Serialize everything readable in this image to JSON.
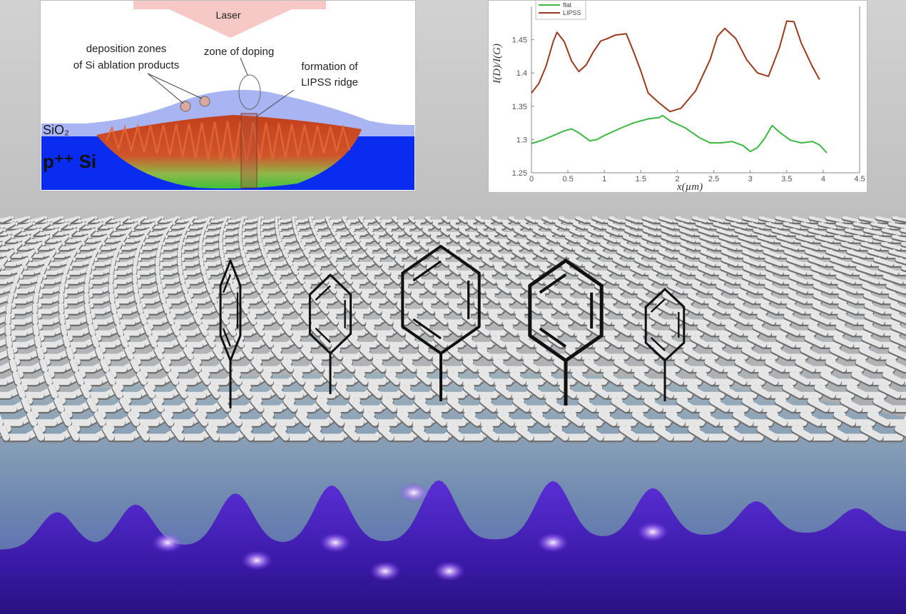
{
  "schematic": {
    "laser_label": "Laser",
    "deposition_label_line1": "deposition zones",
    "deposition_label_line2": "of Si ablation products",
    "doping_label": "zone of doping",
    "lipss_label_line1": "formation of",
    "lipss_label_line2": "LIPSS ridge",
    "oxide_label": "SiO₂",
    "substrate_label": "p⁺⁺ Si",
    "colors": {
      "laser_arrow": "#f6c9c6",
      "oxide_layer": "#a9b4f2",
      "substrate": "#0a2cf0",
      "ridge_core": "#c2401c",
      "ridge_edge": "#3ec23a"
    }
  },
  "chart_data": {
    "type": "line",
    "ylabel": "I(D)/I(G)",
    "xlabel": "x(µm)",
    "xlim": [
      0,
      4.5
    ],
    "ylim": [
      1.25,
      1.5
    ],
    "xticks": [
      "0",
      "0.5",
      "1",
      "1.5",
      "2",
      "2.5",
      "3",
      "3.5",
      "4",
      "4.5"
    ],
    "yticks": [
      "1.25",
      "1.3",
      "1.35",
      "1.4",
      "1.45"
    ],
    "grid": false,
    "legend_position": "top-left",
    "series": [
      {
        "name": "flat",
        "color": "#3cb843",
        "x": [
          0,
          0.15,
          0.3,
          0.45,
          0.55,
          0.65,
          0.8,
          0.9,
          1.0,
          1.2,
          1.4,
          1.6,
          1.75,
          1.8,
          1.9,
          2.1,
          2.3,
          2.45,
          2.6,
          2.75,
          2.9,
          3.0,
          3.1,
          3.2,
          3.3,
          3.4,
          3.55,
          3.7,
          3.85,
          3.95,
          4.05
        ],
        "values": [
          1.294,
          1.299,
          1.306,
          1.313,
          1.316,
          1.31,
          1.298,
          1.3,
          1.306,
          1.316,
          1.325,
          1.331,
          1.333,
          1.336,
          1.328,
          1.318,
          1.303,
          1.295,
          1.295,
          1.297,
          1.291,
          1.282,
          1.288,
          1.302,
          1.321,
          1.311,
          1.299,
          1.295,
          1.297,
          1.292,
          1.28
        ]
      },
      {
        "name": "LIPSS",
        "color": "#9c3a1e",
        "x": [
          0,
          0.1,
          0.2,
          0.3,
          0.35,
          0.45,
          0.55,
          0.65,
          0.75,
          0.85,
          0.95,
          1.05,
          1.15,
          1.3,
          1.4,
          1.5,
          1.6,
          1.75,
          1.9,
          2.05,
          2.25,
          2.45,
          2.55,
          2.65,
          2.8,
          2.95,
          3.1,
          3.25,
          3.4,
          3.5,
          3.6,
          3.7,
          3.85,
          3.95
        ],
        "values": [
          1.37,
          1.384,
          1.41,
          1.448,
          1.461,
          1.447,
          1.418,
          1.402,
          1.412,
          1.432,
          1.448,
          1.452,
          1.457,
          1.459,
          1.432,
          1.403,
          1.37,
          1.355,
          1.342,
          1.347,
          1.373,
          1.42,
          1.455,
          1.467,
          1.452,
          1.42,
          1.4,
          1.395,
          1.438,
          1.478,
          1.477,
          1.445,
          1.41,
          1.39
        ]
      }
    ]
  }
}
